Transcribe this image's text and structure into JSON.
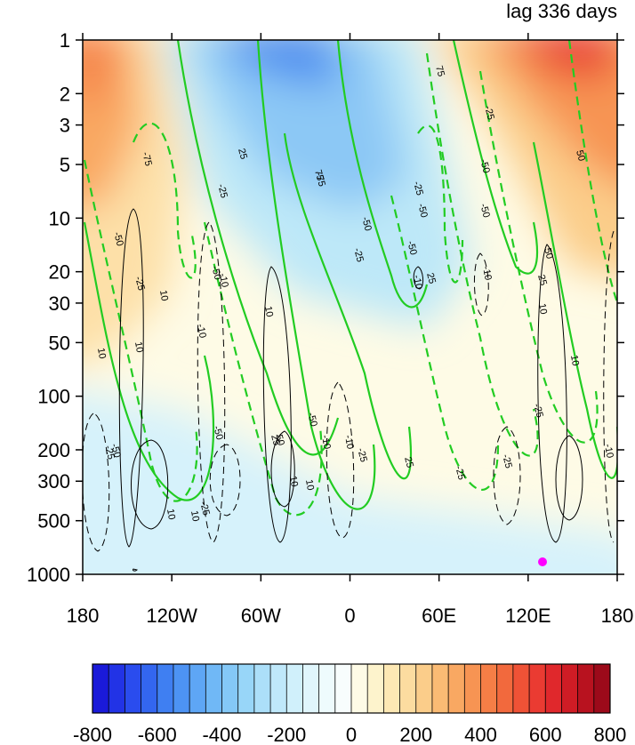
{
  "title_right": "lag 336 days",
  "chart_data": {
    "type": "heatmap",
    "title": "lag 336 days",
    "xlabel": "",
    "ylabel": "",
    "x_ticks": [
      "180",
      "120W",
      "60W",
      "0",
      "60E",
      "120E",
      "180"
    ],
    "x_tick_values": [
      -180,
      -120,
      -60,
      0,
      60,
      120,
      180
    ],
    "y_ticks": [
      "1",
      "2",
      "3",
      "5",
      "10",
      "20",
      "30",
      "50",
      "100",
      "200",
      "300",
      "500",
      "1000"
    ],
    "y_tick_values": [
      1,
      2,
      3,
      5,
      10,
      20,
      30,
      50,
      100,
      200,
      300,
      500,
      1000
    ],
    "y_scale": "log",
    "y_reversed": true,
    "xlim": [
      -180,
      180
    ],
    "ylim": [
      1,
      1000
    ],
    "colorbar": {
      "levels": [
        -800,
        -750,
        -700,
        -650,
        -600,
        -550,
        -500,
        -450,
        -400,
        -350,
        -300,
        -250,
        -200,
        -150,
        -100,
        -50,
        0,
        50,
        100,
        150,
        200,
        250,
        300,
        350,
        400,
        450,
        500,
        550,
        600,
        650,
        700,
        750,
        800
      ],
      "tick_labels": [
        "-800",
        "-600",
        "-400",
        "-200",
        "0",
        "200",
        "400",
        "600",
        "800"
      ],
      "tick_values": [
        -800,
        -600,
        -400,
        -200,
        0,
        200,
        400,
        600,
        800
      ],
      "colors": [
        "#1a1ad9",
        "#2233e6",
        "#2a4cee",
        "#3366f0",
        "#3f7ff2",
        "#4d93f4",
        "#5ea6f5",
        "#70b8f6",
        "#84c8f7",
        "#98d6f8",
        "#acdff9",
        "#bfe8fa",
        "#d0f0fb",
        "#e0f6fc",
        "#eefbfd",
        "#f8fdfd",
        "#fefbe6",
        "#fdf3cc",
        "#fde8b4",
        "#fcdca0",
        "#fbcd8a",
        "#fabb74",
        "#f9a862",
        "#f79453",
        "#f57e46",
        "#f2693d",
        "#ef5236",
        "#ea3b32",
        "#e0282c",
        "#cf1c25",
        "#b8121f",
        "#9c0a1a"
      ]
    },
    "shaded_regions": [
      {
        "label": "positive",
        "x": -170,
        "y": 5,
        "value": 300
      },
      {
        "label": "negative",
        "x": -40,
        "y": 2,
        "value": -600
      },
      {
        "label": "positive",
        "x": 140,
        "y": 1.5,
        "value": 700
      },
      {
        "label": "negative",
        "x": -160,
        "y": 300,
        "value": -100
      }
    ],
    "contour_labels_green": [
      "-75",
      "-50",
      "-25",
      "-50",
      "25",
      "-25",
      "25",
      "-75",
      "-50",
      "-25",
      "75",
      "-50",
      "25",
      "-50",
      "-25",
      "-50",
      "50",
      "25",
      "-25",
      "-25",
      "-50",
      "25",
      "50",
      "-25",
      "50",
      "-25",
      "-50",
      "75",
      "-50",
      "-25",
      "-25",
      "-50",
      "-25"
    ],
    "contour_labels_black": [
      "10",
      "-10",
      "10",
      "10",
      "-10",
      "10",
      "-10",
      "10",
      "10",
      "-10",
      "-10",
      "10",
      "10",
      "-10",
      "-10",
      "10",
      "10"
    ],
    "marker": {
      "x": 130,
      "y": 850,
      "color": "#ff00ff"
    }
  }
}
